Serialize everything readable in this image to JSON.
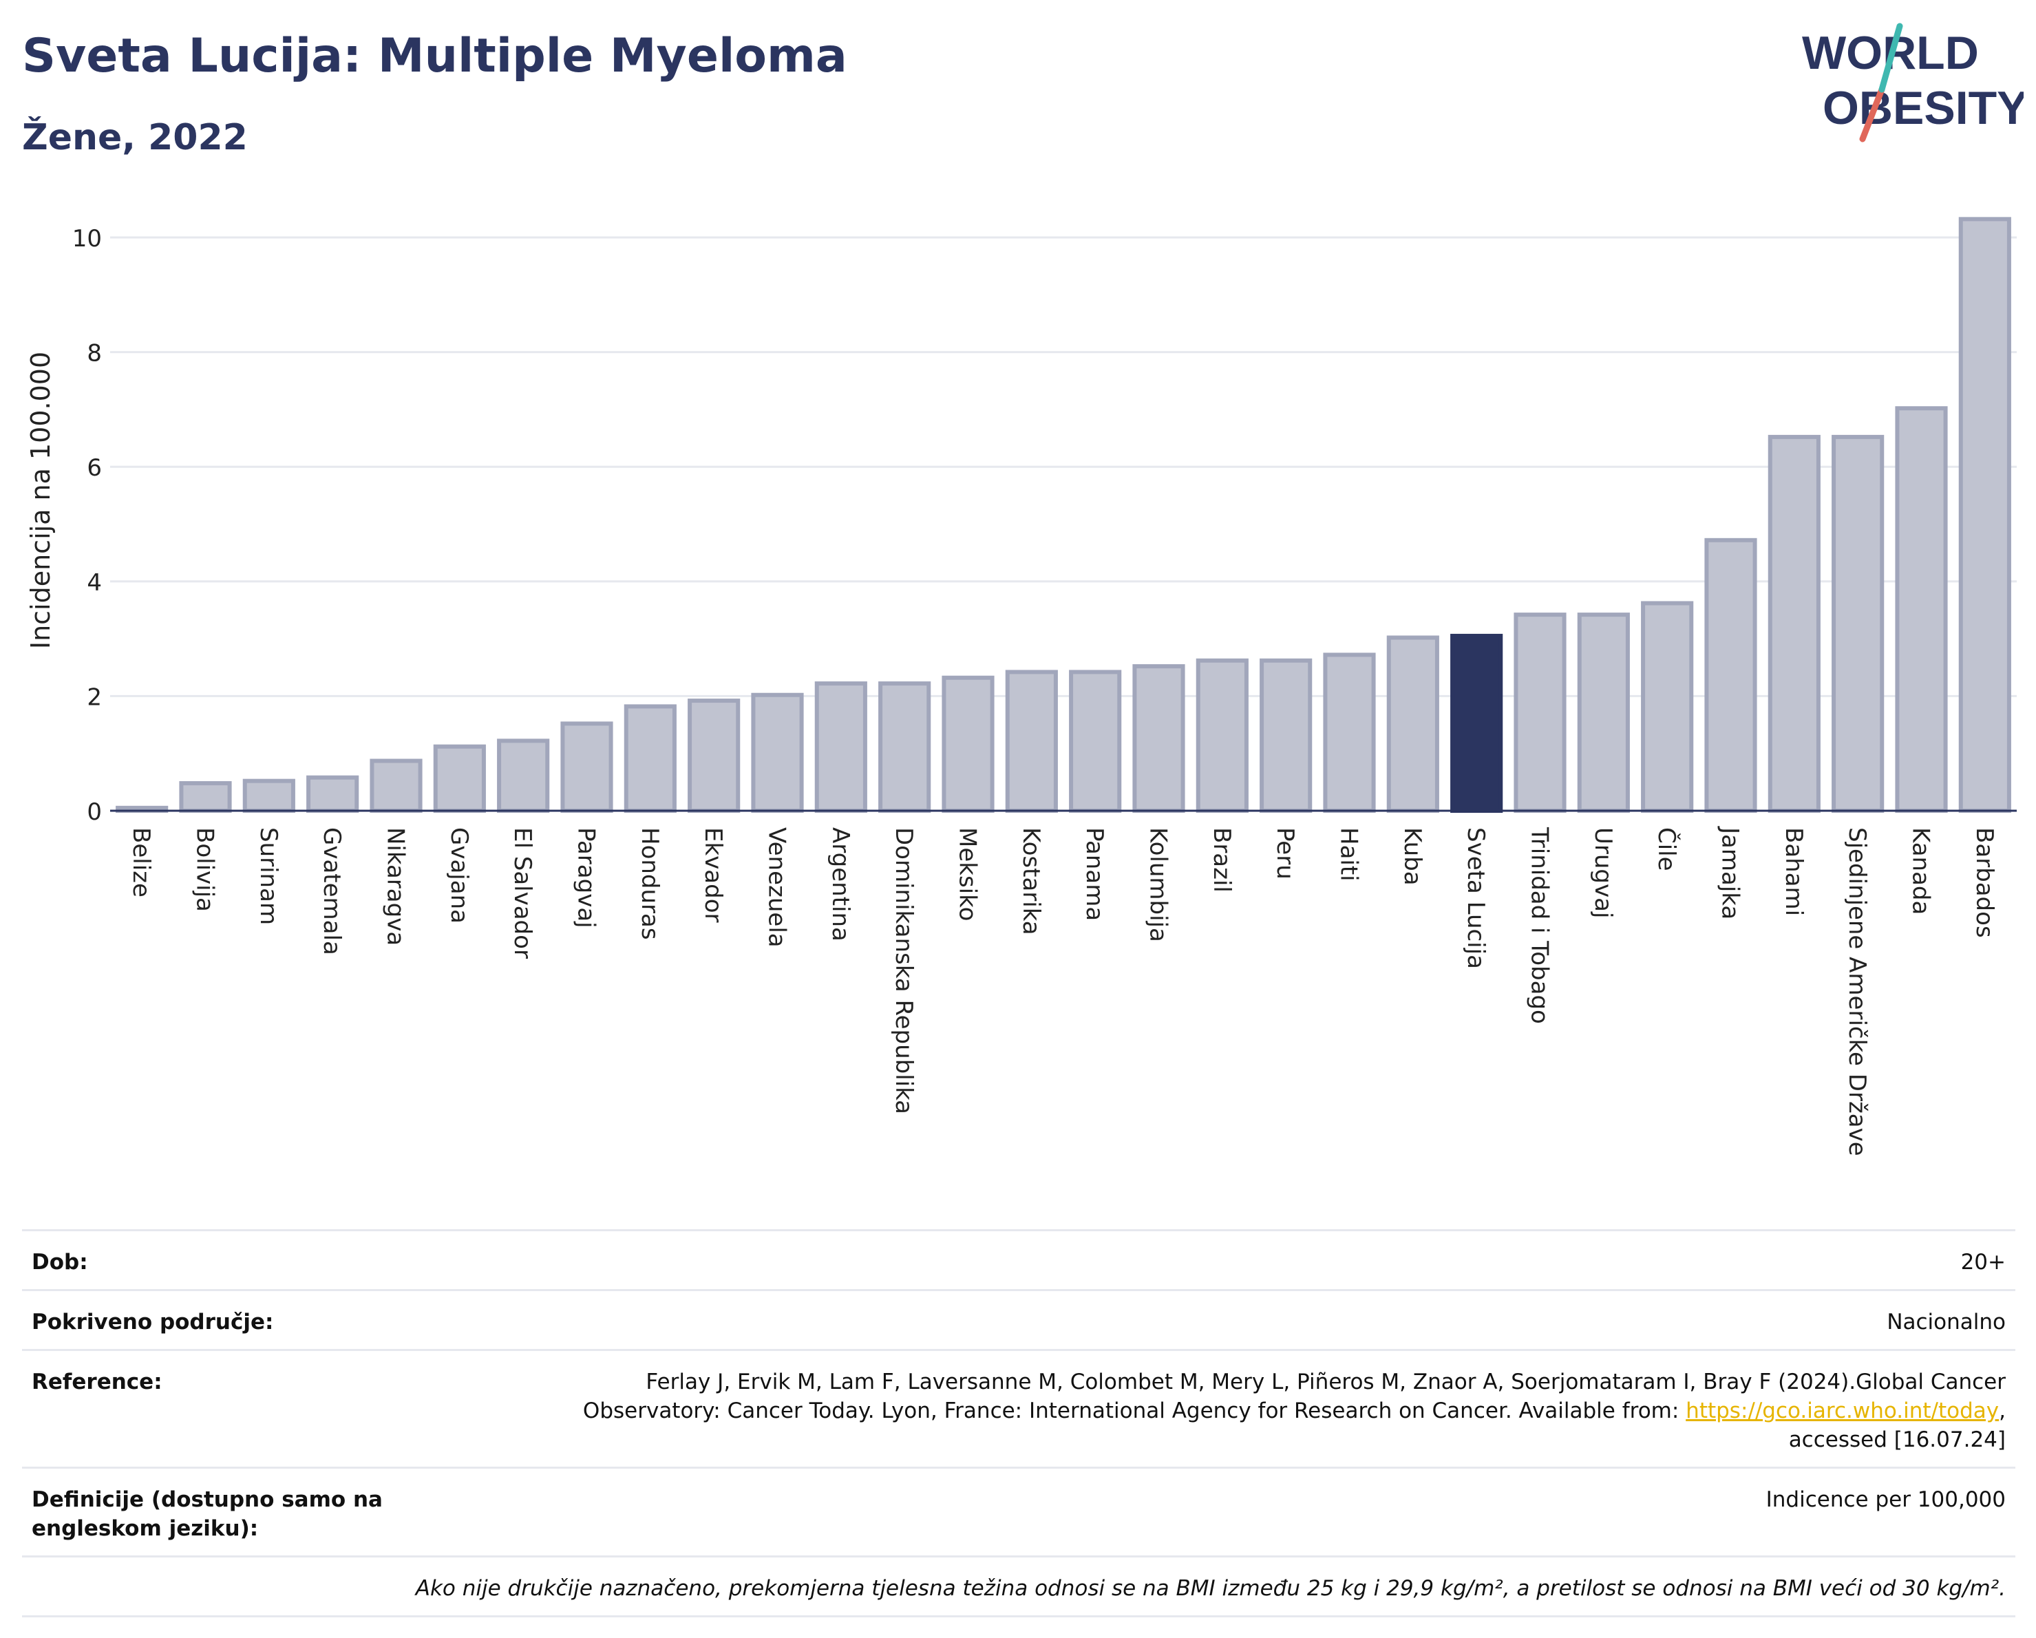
{
  "header": {
    "title": "Sveta Lucija: Multiple Myeloma",
    "subtitle": "Žene, 2022"
  },
  "logo": {
    "line1": "WORLD",
    "line2": "OBESITY"
  },
  "chart_data": {
    "type": "bar",
    "ylabel": "Incidencija na 100.000",
    "ylim": [
      0,
      10.5
    ],
    "yticks": [
      0,
      2,
      4,
      6,
      8,
      10
    ],
    "grid": true,
    "highlight": "Sveta Lucija",
    "categories": [
      "Belize",
      "Bolivija",
      "Surinam",
      "Gvatemala",
      "Nikaragva",
      "Gvajana",
      "El Salvador",
      "Paragvaj",
      "Honduras",
      "Ekvador",
      "Venezuela",
      "Argentina",
      "Dominikanska Republika",
      "Meksiko",
      "Kostarika",
      "Panama",
      "Kolumbija",
      "Brazil",
      "Peru",
      "Haiti",
      "Kuba",
      "Sveta Lucija",
      "Trinidad i Tobago",
      "Urugvaj",
      "Čile",
      "Jamajka",
      "Bahami",
      "Sjedinjene Američke Države",
      "Kanada",
      "Barbados"
    ],
    "values": [
      0.05,
      0.48,
      0.52,
      0.58,
      0.87,
      1.12,
      1.22,
      1.52,
      1.82,
      1.92,
      2.02,
      2.22,
      2.22,
      2.32,
      2.42,
      2.42,
      2.52,
      2.62,
      2.62,
      2.72,
      3.02,
      3.05,
      3.42,
      3.42,
      3.62,
      4.72,
      6.52,
      6.52,
      7.02,
      10.32
    ]
  },
  "colors": {
    "bar": "#c0c3d0",
    "bar_stroke": "#a1a6bb",
    "highlight": "#2b3560",
    "title": "#2b3560",
    "accent_teal": "#3fb8b0",
    "accent_red": "#e0675a",
    "link": "#e6b400"
  },
  "info": {
    "age_label": "Dob:",
    "age_value": "20+",
    "coverage_label": "Pokriveno područje:",
    "coverage_value": "Nacionalno",
    "ref_label": "Reference:",
    "ref_text1": "Ferlay J, Ervik M, Lam F, Laversanne M, Colombet M, Mery L, Piñeros M, Znaor A, Soerjomataram I, Bray F (2024).Global Cancer",
    "ref_text2": "Observatory: Cancer Today. Lyon, France: International Agency for Research on Cancer. Available from: ",
    "ref_link": "https://gco.iarc.who.int/today",
    "ref_text3": ",",
    "ref_text4": "accessed [16.07.24]",
    "def_label": "Definicije (dostupno samo na engleskom jeziku):",
    "def_value": "Indicence per 100,000",
    "note": "Ako nije drukčije naznačeno, prekomjerna tjelesna težina odnosi se na BMI između 25 kg i 29,9 kg/m², a pretilost se odnosi na BMI veći od 30 kg/m²."
  }
}
